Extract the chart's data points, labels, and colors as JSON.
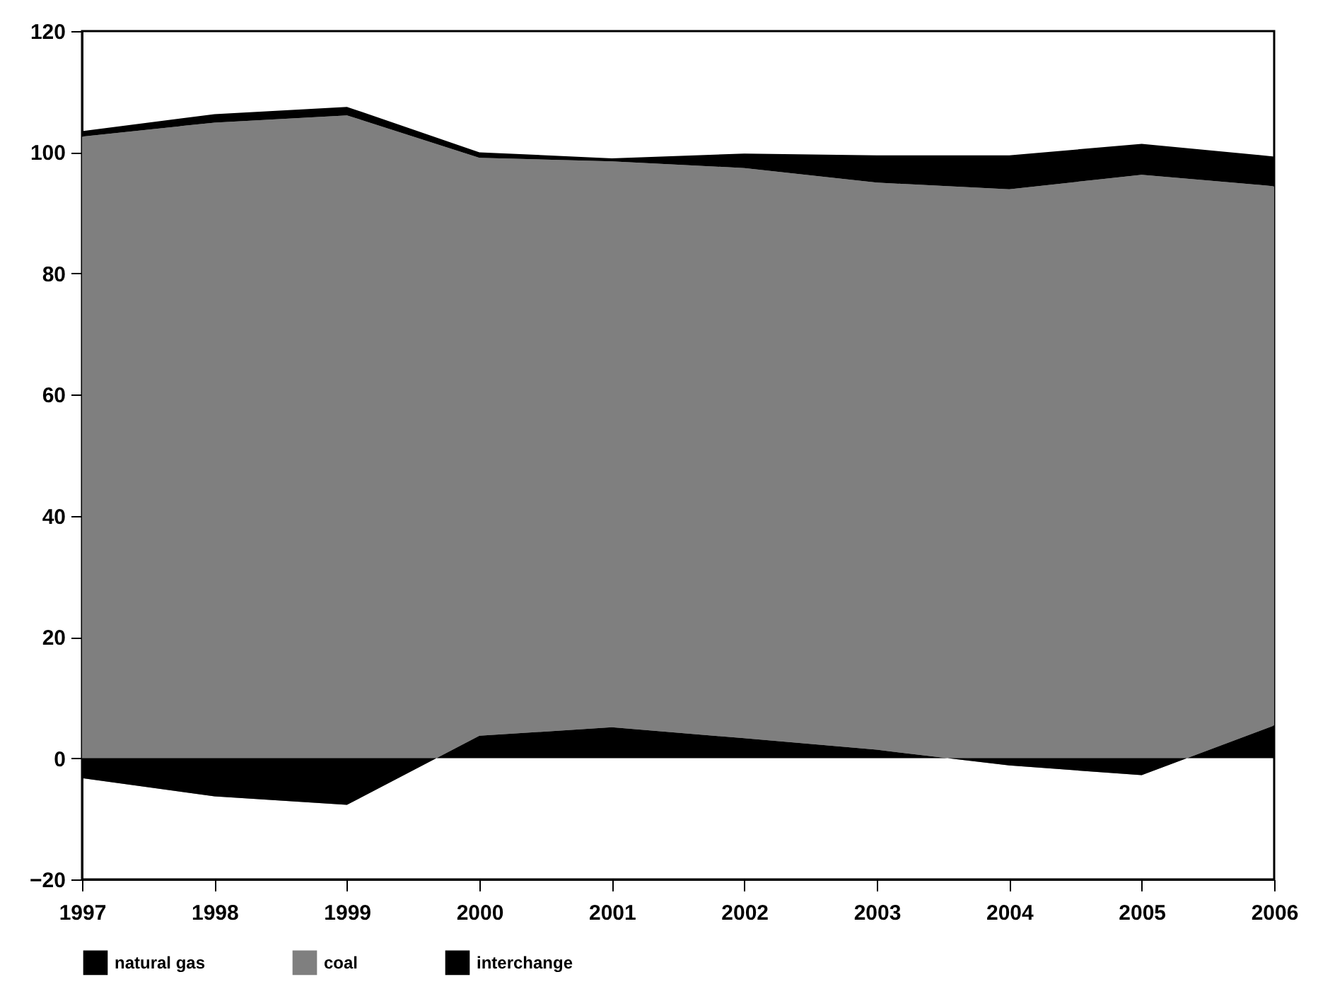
{
  "chart_data": {
    "type": "area",
    "stacked": true,
    "categories": [
      "1997",
      "1998",
      "1999",
      "2000",
      "2001",
      "2002",
      "2003",
      "2004",
      "2005",
      "2006"
    ],
    "series": [
      {
        "name": "natural gas",
        "color": "#000000",
        "values": [
          -3.3,
          -6.3,
          -7.7,
          3.7,
          5.1,
          3.3,
          1.4,
          -1.2,
          -2.8,
          5.4
        ]
      },
      {
        "name": "coal",
        "color": "#7f7f7f",
        "values": [
          105.9,
          111.2,
          113.8,
          95.4,
          93.4,
          94.1,
          93.6,
          95.1,
          99.1,
          89.0
        ]
      },
      {
        "name": "interchange",
        "color": "#000000",
        "values": [
          0.9,
          1.4,
          1.4,
          0.9,
          0.5,
          2.4,
          4.5,
          5.6,
          5.1,
          4.9
        ]
      }
    ],
    "ylim": [
      -20,
      120
    ],
    "yticks": [
      -20,
      0,
      20,
      40,
      60,
      80,
      100,
      120
    ],
    "legend": "bottom"
  }
}
